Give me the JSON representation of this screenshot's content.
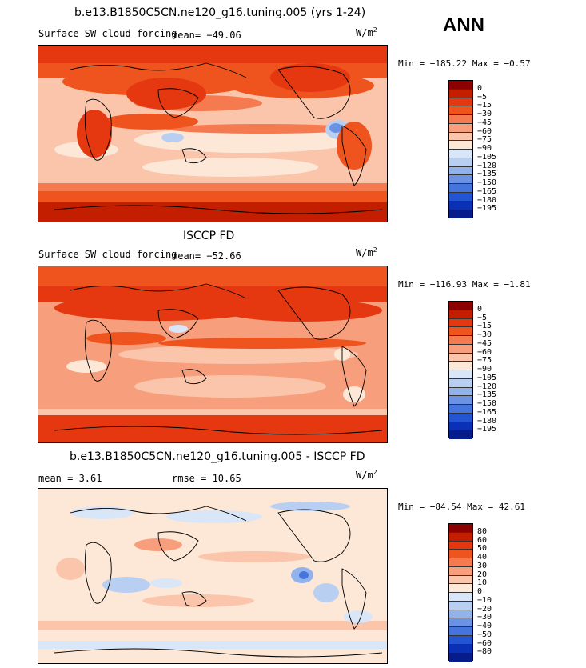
{
  "header": {
    "season": "ANN"
  },
  "panels": [
    {
      "title": "b.e13.B1850C5CN.ne120_g16.tuning.005 (yrs 1-24)",
      "variable": "Surface SW cloud forcing",
      "mean_text": "mean= −49.06",
      "unit_base": "W/m",
      "unit_exp": "2",
      "minmax": "Min = −185.22 Max =  −0.57",
      "levels": [
        "0",
        "−5",
        "−15",
        "−30",
        "−45",
        "−60",
        "−75",
        "−90",
        "−105",
        "−120",
        "−135",
        "−150",
        "−165",
        "−180",
        "−195"
      ],
      "colors": [
        "#8b0000",
        "#c41e00",
        "#e53810",
        "#f0541e",
        "#f57a4f",
        "#f79f7c",
        "#fac5aa",
        "#fde8d8",
        "#d9e6f7",
        "#b8cff2",
        "#92b2ec",
        "#6c92e3",
        "#4574dc",
        "#2355d2",
        "#0a30b8",
        "#061c8a"
      ]
    },
    {
      "title": "ISCCP FD",
      "variable": "Surface SW cloud forcing",
      "mean_text": "mean= −52.66",
      "unit_base": "W/m",
      "unit_exp": "2",
      "minmax": "Min = −116.93 Max =  −1.81",
      "levels": [
        "0",
        "−5",
        "−15",
        "−30",
        "−45",
        "−60",
        "−75",
        "−90",
        "−105",
        "−120",
        "−135",
        "−150",
        "−165",
        "−180",
        "−195"
      ],
      "colors": [
        "#8b0000",
        "#c41e00",
        "#e53810",
        "#f0541e",
        "#f57a4f",
        "#f79f7c",
        "#fac5aa",
        "#fde8d8",
        "#d9e6f7",
        "#b8cff2",
        "#92b2ec",
        "#6c92e3",
        "#4574dc",
        "#2355d2",
        "#0a30b8",
        "#061c8a"
      ]
    },
    {
      "title": "b.e13.B1850C5CN.ne120_g16.tuning.005 - ISCCP FD",
      "mean_text": "mean =    3.61",
      "rmse_text": "rmse =   10.65",
      "unit_base": "W/m",
      "unit_exp": "2",
      "minmax": "Min = −84.54 Max =  42.61",
      "levels": [
        "80",
        "60",
        "50",
        "40",
        "30",
        "20",
        "10",
        "0",
        "−10",
        "−20",
        "−30",
        "−40",
        "−50",
        "−60",
        "−80"
      ],
      "colors": [
        "#8b0000",
        "#c41e00",
        "#e53810",
        "#f0541e",
        "#f57a4f",
        "#f79f7c",
        "#fac5aa",
        "#fde8d8",
        "#d9e6f7",
        "#b8cff2",
        "#92b2ec",
        "#6c92e3",
        "#4574dc",
        "#2355d2",
        "#0a30b8",
        "#061c8a"
      ]
    }
  ]
}
